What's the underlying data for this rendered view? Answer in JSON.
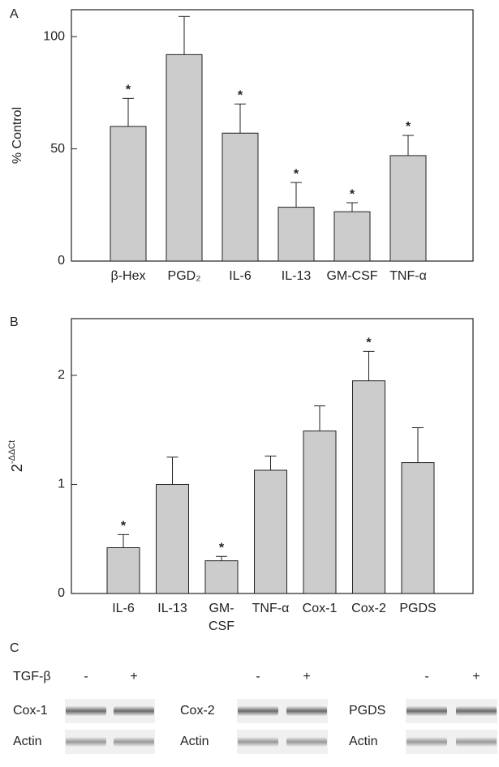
{
  "chart_data": [
    {
      "type": "bar",
      "label": "A",
      "ylabel": "% Control",
      "categories": [
        "β-Hex",
        "PGD₂",
        "IL-6",
        "IL-13",
        "GM-CSF",
        "TNF-α"
      ],
      "values": [
        60,
        92,
        57,
        24,
        22,
        47
      ],
      "errors": [
        12.5,
        17,
        13,
        11,
        4,
        9
      ],
      "significance": [
        "*",
        null,
        "*",
        "*",
        "*",
        "*"
      ],
      "color": "#cccccc",
      "ylim": [
        0,
        112
      ],
      "yticks": [
        0,
        50,
        100
      ]
    },
    {
      "type": "bar",
      "label": "B",
      "ylabel": {
        "base": "2",
        "sup": "-ΔΔCt"
      },
      "categories": [
        "IL-6",
        "IL-13",
        "GM-\nCSF",
        "TNF-α",
        "Cox-1",
        "Cox-2",
        "PGDS"
      ],
      "values": [
        0.42,
        1.0,
        0.3,
        1.13,
        1.49,
        1.95,
        1.2
      ],
      "errors": [
        0.12,
        0.25,
        0.04,
        0.13,
        0.23,
        0.27,
        0.32
      ],
      "significance": [
        "*",
        null,
        "*",
        null,
        null,
        "*",
        null
      ],
      "color": "#cccccc",
      "ylim": [
        0,
        2.52
      ],
      "yticks": [
        0,
        1,
        2
      ]
    }
  ],
  "blot": {
    "label": "C",
    "treatment": "TGF-β",
    "groups": [
      {
        "lanes": [
          "-",
          "+"
        ],
        "rows": [
          "Cox-1",
          "Actin"
        ]
      },
      {
        "lanes": [
          "-",
          "+"
        ],
        "rows": [
          "Cox-2",
          "Actin"
        ]
      },
      {
        "lanes": [
          "-",
          "+"
        ],
        "rows": [
          "PGDS",
          "Actin"
        ]
      }
    ]
  }
}
